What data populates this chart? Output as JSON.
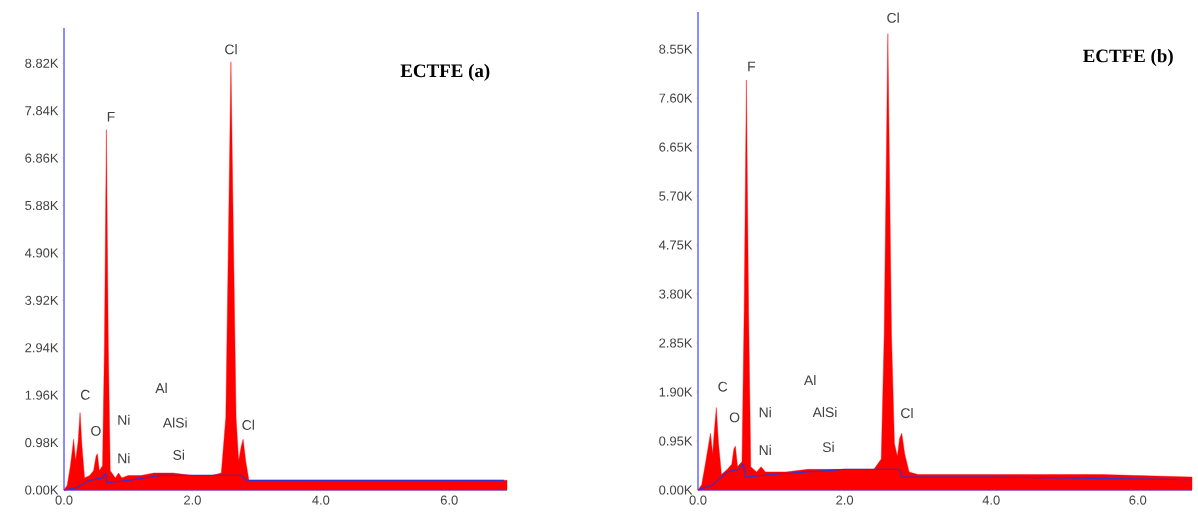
{
  "chart_data": [
    {
      "type": "area",
      "title": "ECTFE (a)",
      "xlim": [
        0,
        6.9
      ],
      "ylim": [
        0,
        9550
      ],
      "xticks": [
        {
          "value": 0,
          "label": "0.0"
        },
        {
          "value": 2,
          "label": "2.0"
        },
        {
          "value": 4,
          "label": "4.0"
        },
        {
          "value": 6,
          "label": "6.0"
        }
      ],
      "yticks": [
        {
          "value": 0,
          "label": "0.00K"
        },
        {
          "value": 980,
          "label": "0.98K"
        },
        {
          "value": 1960,
          "label": "1.96K"
        },
        {
          "value": 2940,
          "label": "2.94K"
        },
        {
          "value": 3920,
          "label": "3.92K"
        },
        {
          "value": 4900,
          "label": "4.90K"
        },
        {
          "value": 5880,
          "label": "5.88K"
        },
        {
          "value": 6860,
          "label": "6.86K"
        },
        {
          "value": 7840,
          "label": "7.84K"
        },
        {
          "value": 8820,
          "label": "8.82K"
        }
      ],
      "series": [
        {
          "color": "#ff0000",
          "x": [
            0.0,
            0.05,
            0.1,
            0.15,
            0.18,
            0.22,
            0.25,
            0.28,
            0.32,
            0.4,
            0.46,
            0.5,
            0.52,
            0.55,
            0.6,
            0.63,
            0.66,
            0.69,
            0.72,
            0.8,
            0.85,
            0.9,
            1.0,
            1.2,
            1.4,
            1.5,
            1.7,
            2.0,
            2.3,
            2.45,
            2.52,
            2.57,
            2.6,
            2.63,
            2.68,
            2.72,
            2.76,
            2.79,
            2.83,
            2.88,
            3.0,
            4.0,
            5.0,
            6.0,
            6.9
          ],
          "values": [
            0,
            100,
            500,
            1050,
            600,
            1000,
            1600,
            900,
            250,
            300,
            400,
            700,
            750,
            400,
            500,
            3000,
            7450,
            3000,
            400,
            250,
            350,
            250,
            300,
            300,
            350,
            350,
            350,
            300,
            300,
            350,
            1500,
            6000,
            8850,
            6000,
            1500,
            600,
            900,
            1050,
            600,
            200,
            200,
            200,
            200,
            200,
            200
          ]
        },
        {
          "type": "line",
          "color": "#3333cc",
          "x": [
            0.0,
            0.2,
            0.4,
            0.6,
            0.65,
            0.67,
            1.0,
            1.5,
            2.0,
            2.75,
            2.8,
            2.85,
            4.0,
            6.85
          ],
          "values": [
            0,
            50,
            200,
            250,
            350,
            150,
            200,
            300,
            300,
            300,
            250,
            200,
            200,
            200
          ]
        }
      ],
      "annotations": [
        "C",
        "O",
        "F",
        "Ni",
        "Ni",
        "Al",
        "AlSi",
        "Si",
        "Cl",
        "Cl"
      ]
    },
    {
      "type": "area",
      "title": "ECTFE (b)",
      "xlim": [
        0,
        6.74
      ],
      "ylim": [
        0,
        9270
      ],
      "xticks": [
        {
          "value": 0,
          "label": "0.0"
        },
        {
          "value": 2,
          "label": "2.0"
        },
        {
          "value": 4,
          "label": "4.0"
        },
        {
          "value": 6,
          "label": "6.0"
        }
      ],
      "yticks": [
        {
          "value": 0,
          "label": "0.00K"
        },
        {
          "value": 950,
          "label": "0.95K"
        },
        {
          "value": 1900,
          "label": "1.90K"
        },
        {
          "value": 2850,
          "label": "2.85K"
        },
        {
          "value": 3800,
          "label": "3.80K"
        },
        {
          "value": 4750,
          "label": "4.75K"
        },
        {
          "value": 5700,
          "label": "5.70K"
        },
        {
          "value": 6650,
          "label": "6.65K"
        },
        {
          "value": 7600,
          "label": "7.60K"
        },
        {
          "value": 8550,
          "label": "8.55K"
        }
      ],
      "series": [
        {
          "color": "#ff0000",
          "x": [
            0.0,
            0.05,
            0.1,
            0.17,
            0.2,
            0.22,
            0.25,
            0.28,
            0.32,
            0.4,
            0.46,
            0.49,
            0.51,
            0.54,
            0.6,
            0.63,
            0.66,
            0.69,
            0.72,
            0.8,
            0.86,
            0.92,
            1.0,
            1.2,
            1.5,
            1.8,
            2.1,
            2.4,
            2.5,
            2.54,
            2.59,
            2.64,
            2.68,
            2.72,
            2.75,
            2.78,
            2.82,
            2.88,
            3.0,
            3.5,
            4.5,
            5.5,
            6.74
          ],
          "values": [
            0,
            100,
            500,
            1100,
            700,
            1100,
            1600,
            900,
            300,
            400,
            500,
            800,
            850,
            450,
            550,
            3500,
            7950,
            3500,
            450,
            350,
            450,
            350,
            350,
            350,
            400,
            400,
            400,
            400,
            600,
            3000,
            8850,
            3000,
            900,
            650,
            1000,
            1100,
            700,
            350,
            300,
            300,
            300,
            300,
            250
          ]
        },
        {
          "type": "line",
          "color": "#3333cc",
          "x": [
            0.0,
            0.2,
            0.4,
            0.55,
            0.62,
            0.65,
            1.0,
            1.5,
            2.0,
            2.75,
            2.78,
            4.0,
            6.7
          ],
          "values": [
            0,
            100,
            350,
            400,
            500,
            250,
            300,
            350,
            400,
            400,
            250,
            250,
            200
          ]
        }
      ],
      "annotations": [
        "C",
        "O",
        "F",
        "Ni",
        "Ni",
        "Al",
        "AlSi",
        "Si",
        "Cl",
        "Cl"
      ]
    }
  ]
}
